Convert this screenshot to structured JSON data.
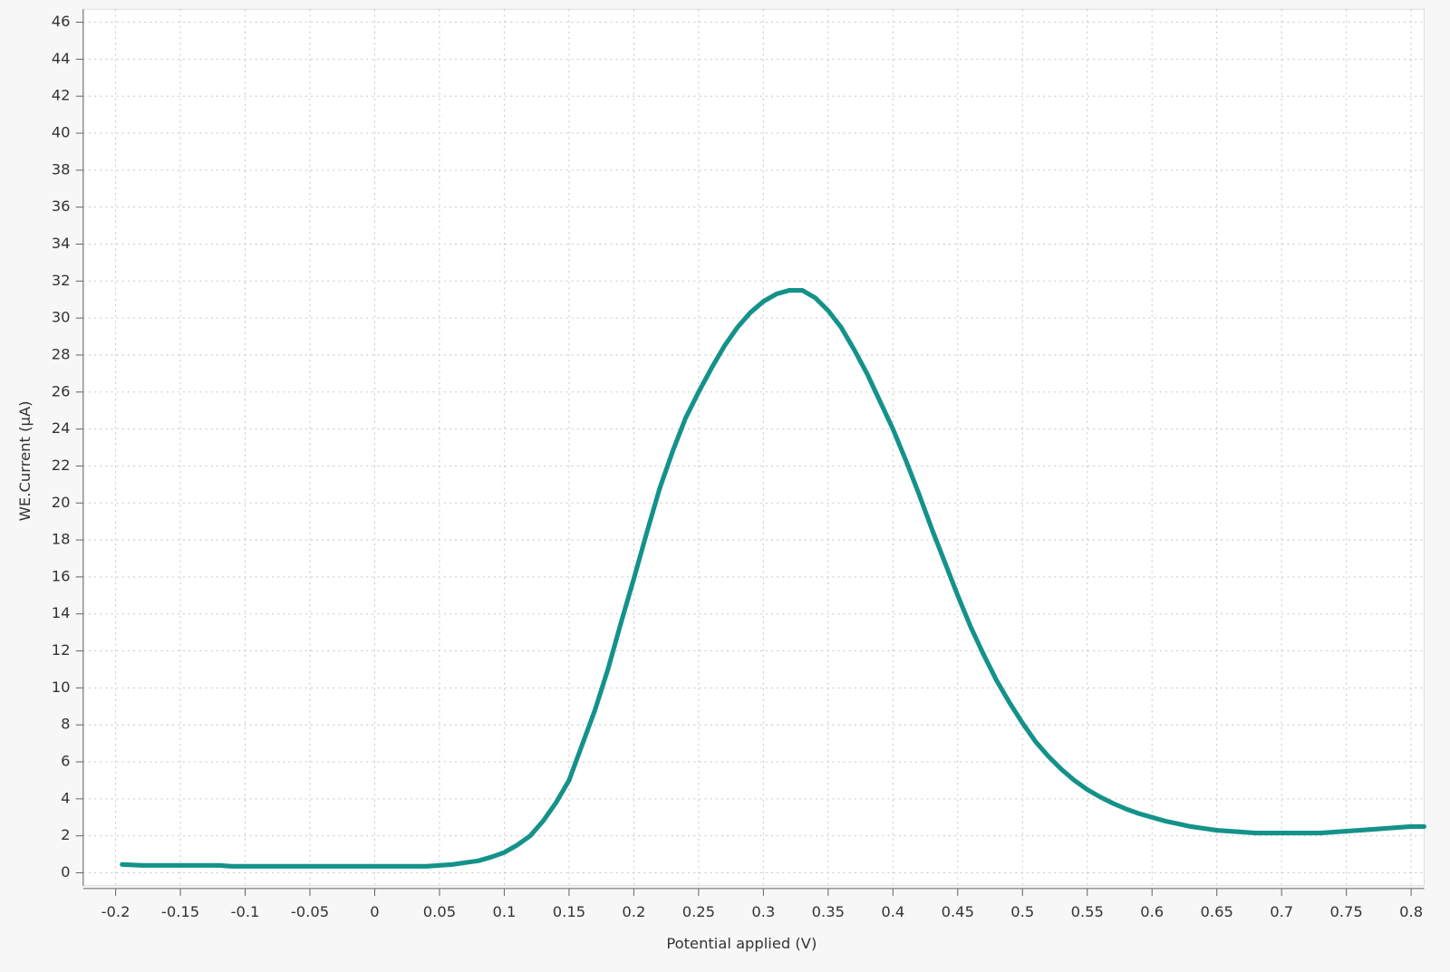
{
  "chart_data": {
    "type": "line",
    "xlabel": "Potential applied (V)",
    "ylabel": "WE.Current (µA)",
    "x": [
      -0.195,
      -0.18,
      -0.16,
      -0.14,
      -0.12,
      -0.11,
      -0.08,
      -0.05,
      -0.02,
      0.01,
      0.04,
      0.05,
      0.06,
      0.07,
      0.08,
      0.09,
      0.1,
      0.11,
      0.12,
      0.13,
      0.14,
      0.15,
      0.16,
      0.17,
      0.18,
      0.19,
      0.2,
      0.21,
      0.22,
      0.23,
      0.24,
      0.25,
      0.26,
      0.27,
      0.28,
      0.29,
      0.3,
      0.31,
      0.32,
      0.33,
      0.34,
      0.35,
      0.36,
      0.37,
      0.38,
      0.39,
      0.4,
      0.41,
      0.42,
      0.43,
      0.44,
      0.45,
      0.46,
      0.47,
      0.48,
      0.49,
      0.5,
      0.51,
      0.52,
      0.53,
      0.54,
      0.55,
      0.56,
      0.57,
      0.58,
      0.59,
      0.6,
      0.61,
      0.62,
      0.63,
      0.64,
      0.65,
      0.66,
      0.67,
      0.68,
      0.7,
      0.72,
      0.73,
      0.74,
      0.75,
      0.76,
      0.77,
      0.78,
      0.79,
      0.8,
      0.81
    ],
    "series": [
      {
        "name": "WE.Current",
        "color": "#14928a",
        "values": [
          0.45,
          0.4,
          0.4,
          0.4,
          0.4,
          0.35,
          0.35,
          0.35,
          0.35,
          0.35,
          0.35,
          0.4,
          0.45,
          0.55,
          0.65,
          0.85,
          1.1,
          1.5,
          2.0,
          2.8,
          3.8,
          5.0,
          6.9,
          8.8,
          11.0,
          13.5,
          15.9,
          18.4,
          20.8,
          22.8,
          24.6,
          26.0,
          27.3,
          28.5,
          29.5,
          30.3,
          30.9,
          31.3,
          31.5,
          31.5,
          31.1,
          30.4,
          29.5,
          28.3,
          27.0,
          25.5,
          24.0,
          22.3,
          20.5,
          18.6,
          16.8,
          15.0,
          13.3,
          11.8,
          10.4,
          9.2,
          8.1,
          7.1,
          6.3,
          5.6,
          5.0,
          4.5,
          4.1,
          3.75,
          3.45,
          3.2,
          3.0,
          2.8,
          2.65,
          2.5,
          2.4,
          2.3,
          2.25,
          2.2,
          2.15,
          2.15,
          2.15,
          2.15,
          2.2,
          2.25,
          2.3,
          2.35,
          2.4,
          2.45,
          2.5,
          2.5
        ]
      }
    ],
    "xlim": [
      -0.225,
      0.81
    ],
    "ylim": [
      -0.7,
      46.7
    ],
    "xticks": [
      -0.2,
      -0.15,
      -0.1,
      -0.05,
      0,
      0.05,
      0.1,
      0.15,
      0.2,
      0.25,
      0.3,
      0.35,
      0.4,
      0.45,
      0.5,
      0.55,
      0.6,
      0.65,
      0.7,
      0.75,
      0.8
    ],
    "yticks": [
      0,
      2,
      4,
      6,
      8,
      10,
      12,
      14,
      16,
      18,
      20,
      22,
      24,
      26,
      28,
      30,
      32,
      34,
      36,
      38,
      40,
      42,
      44,
      46
    ],
    "grid": true
  }
}
